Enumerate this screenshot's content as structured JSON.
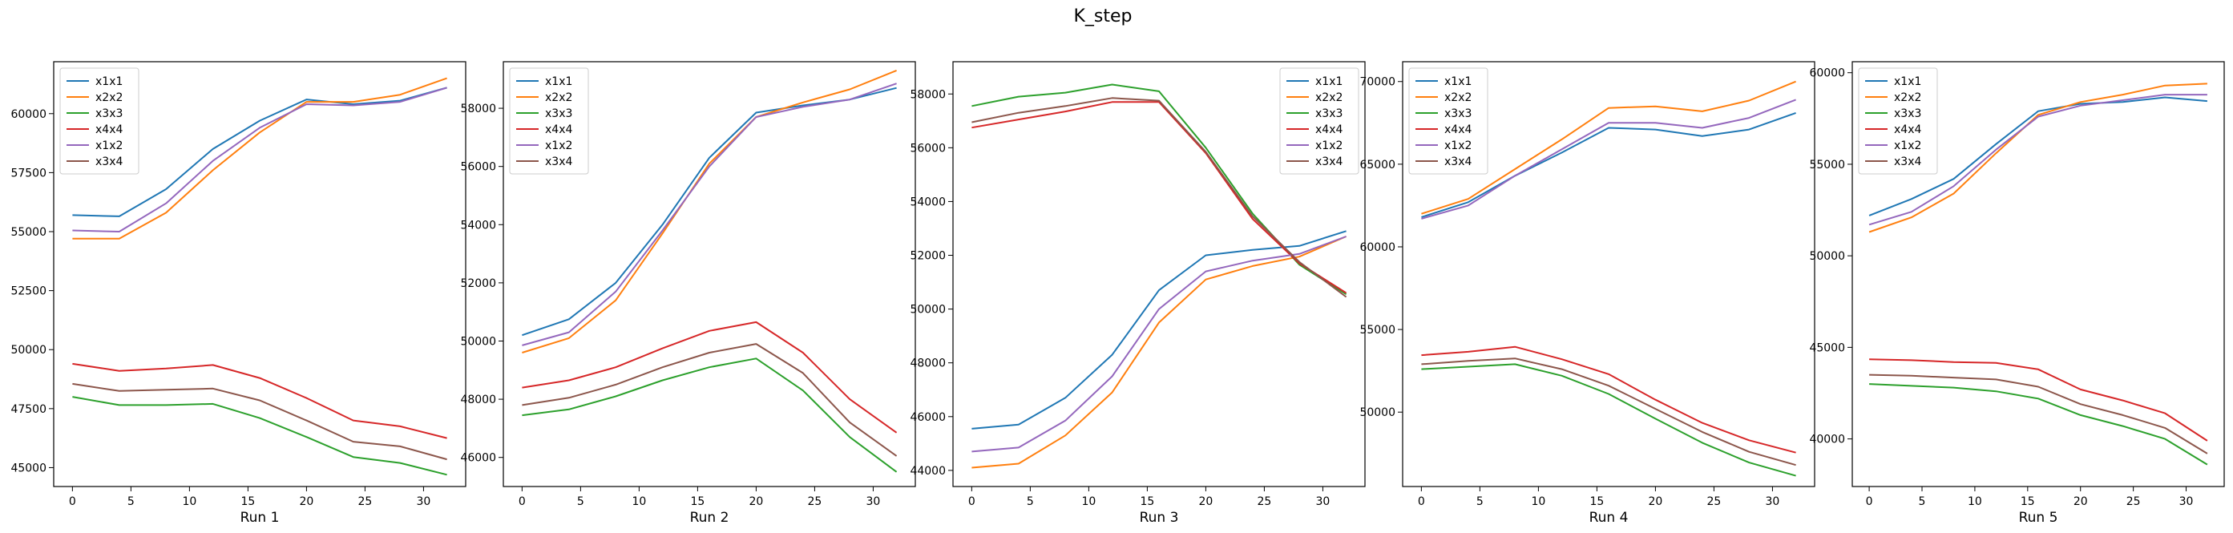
{
  "figure": {
    "title": "K_step"
  },
  "colors": {
    "x1x1": "#1f77b4",
    "x2x2": "#ff7f0e",
    "x3x3": "#2ca02c",
    "x4x4": "#d62728",
    "x1x2": "#9467bd",
    "x3x4": "#8c564b"
  },
  "chart_data": [
    {
      "type": "line",
      "xlabel": "Run 1",
      "legend": "top-left",
      "x": [
        0,
        4,
        8,
        12,
        16,
        20,
        24,
        28,
        32
      ],
      "xticks": [
        0,
        5,
        10,
        15,
        20,
        25,
        30
      ],
      "xlim": [
        -1.6,
        33.6
      ],
      "yticks": [
        45000,
        47500,
        50000,
        52500,
        55000,
        57500,
        60000
      ],
      "ylim": [
        44200,
        62200
      ],
      "series": [
        {
          "name": "x1x1",
          "values": [
            55700,
            55650,
            56800,
            58500,
            59700,
            60600,
            60400,
            60550,
            61100
          ]
        },
        {
          "name": "x2x2",
          "values": [
            54700,
            54700,
            55800,
            57600,
            59200,
            60500,
            60500,
            60800,
            61500
          ]
        },
        {
          "name": "x3x3",
          "values": [
            48000,
            47650,
            47650,
            47700,
            47100,
            46300,
            45450,
            45200,
            44700
          ]
        },
        {
          "name": "x4x4",
          "values": [
            49400,
            49100,
            49200,
            49350,
            48800,
            47950,
            47000,
            46750,
            46250
          ]
        },
        {
          "name": "x1x2",
          "values": [
            55050,
            55000,
            56200,
            58000,
            59400,
            60400,
            60350,
            60500,
            61100
          ]
        },
        {
          "name": "x3x4",
          "values": [
            48550,
            48250,
            48300,
            48350,
            47850,
            47000,
            46100,
            45900,
            45350
          ]
        }
      ]
    },
    {
      "type": "line",
      "xlabel": "Run 2",
      "legend": "top-left",
      "x": [
        0,
        4,
        8,
        12,
        16,
        20,
        24,
        28,
        32
      ],
      "xticks": [
        0,
        5,
        10,
        15,
        20,
        25,
        30
      ],
      "xlim": [
        -1.6,
        33.6
      ],
      "yticks": [
        46000,
        48000,
        50000,
        52000,
        54000,
        56000,
        58000
      ],
      "ylim": [
        45000,
        59600
      ],
      "series": [
        {
          "name": "x1x1",
          "values": [
            50200,
            50750,
            52000,
            54000,
            56300,
            57850,
            58100,
            58300,
            58700
          ]
        },
        {
          "name": "x2x2",
          "values": [
            49600,
            50100,
            51400,
            53700,
            56100,
            57700,
            58200,
            58650,
            59300
          ]
        },
        {
          "name": "x3x3",
          "values": [
            47450,
            47650,
            48100,
            48650,
            49100,
            49400,
            48300,
            46700,
            45500
          ]
        },
        {
          "name": "x4x4",
          "values": [
            48400,
            48650,
            49100,
            49750,
            50350,
            50650,
            49600,
            48000,
            46850
          ]
        },
        {
          "name": "x1x2",
          "values": [
            49850,
            50300,
            51700,
            53800,
            56000,
            57700,
            58050,
            58300,
            58850
          ]
        },
        {
          "name": "x3x4",
          "values": [
            47800,
            48050,
            48500,
            49100,
            49600,
            49900,
            48900,
            47200,
            46050
          ]
        }
      ]
    },
    {
      "type": "line",
      "xlabel": "Run 3",
      "legend": "top-right",
      "x": [
        0,
        4,
        8,
        12,
        16,
        20,
        24,
        28,
        32
      ],
      "xticks": [
        0,
        5,
        10,
        15,
        20,
        25,
        30
      ],
      "xlim": [
        -1.6,
        33.6
      ],
      "yticks": [
        44000,
        46000,
        48000,
        50000,
        52000,
        54000,
        56000,
        58000
      ],
      "ylim": [
        43400,
        59200
      ],
      "series": [
        {
          "name": "x1x1",
          "values": [
            45550,
            45700,
            46700,
            48300,
            50700,
            52000,
            52200,
            52350,
            52900
          ]
        },
        {
          "name": "x2x2",
          "values": [
            44100,
            44250,
            45300,
            46900,
            49500,
            51100,
            51600,
            51950,
            52700
          ]
        },
        {
          "name": "x3x3",
          "values": [
            57550,
            57900,
            58050,
            58350,
            58100,
            56000,
            53550,
            51650,
            50550
          ]
        },
        {
          "name": "x4x4",
          "values": [
            56750,
            57050,
            57350,
            57700,
            57700,
            55800,
            53350,
            51700,
            50600
          ]
        },
        {
          "name": "x1x2",
          "values": [
            44700,
            44850,
            45850,
            47500,
            50000,
            51400,
            51800,
            52050,
            52700
          ]
        },
        {
          "name": "x3x4",
          "values": [
            56950,
            57300,
            57550,
            57850,
            57750,
            55850,
            53450,
            51750,
            50450
          ]
        }
      ]
    },
    {
      "type": "line",
      "xlabel": "Run 4",
      "legend": "top-left",
      "x": [
        0,
        4,
        8,
        12,
        16,
        20,
        24,
        28,
        32
      ],
      "xticks": [
        0,
        5,
        10,
        15,
        20,
        25,
        30
      ],
      "xlim": [
        -1.6,
        33.6
      ],
      "yticks": [
        50000,
        55000,
        60000,
        65000,
        70000
      ],
      "ylim": [
        45500,
        71200
      ],
      "series": [
        {
          "name": "x1x1",
          "values": [
            61800,
            62700,
            64300,
            65700,
            67200,
            67100,
            66700,
            67100,
            68100
          ]
        },
        {
          "name": "x2x2",
          "values": [
            62000,
            62900,
            64700,
            66500,
            68400,
            68500,
            68200,
            68850,
            70000
          ]
        },
        {
          "name": "x3x3",
          "values": [
            52600,
            52750,
            52900,
            52200,
            51100,
            49600,
            48150,
            46950,
            46150
          ]
        },
        {
          "name": "x4x4",
          "values": [
            53450,
            53650,
            53950,
            53200,
            52300,
            50750,
            49350,
            48300,
            47550
          ]
        },
        {
          "name": "x1x2",
          "values": [
            61700,
            62500,
            64300,
            65900,
            67500,
            67500,
            67200,
            67800,
            68900
          ]
        },
        {
          "name": "x3x4",
          "values": [
            52900,
            53100,
            53250,
            52600,
            51600,
            50200,
            48800,
            47600,
            46800
          ]
        }
      ]
    },
    {
      "type": "line",
      "xlabel": "Run 5",
      "legend": "top-left",
      "x": [
        0,
        4,
        8,
        12,
        16,
        20,
        24,
        28,
        32
      ],
      "xticks": [
        0,
        5,
        10,
        15,
        20,
        25,
        30
      ],
      "xlim": [
        -1.6,
        33.6
      ],
      "yticks": [
        40000,
        45000,
        50000,
        55000,
        60000
      ],
      "ylim": [
        37400,
        60600
      ],
      "series": [
        {
          "name": "x1x1",
          "values": [
            52200,
            53100,
            54200,
            56100,
            57900,
            58300,
            58400,
            58650,
            58450
          ]
        },
        {
          "name": "x2x2",
          "values": [
            51300,
            52100,
            53400,
            55600,
            57700,
            58400,
            58800,
            59300,
            59400
          ]
        },
        {
          "name": "x3x3",
          "values": [
            43000,
            42900,
            42800,
            42600,
            42200,
            41300,
            40700,
            40000,
            38600
          ]
        },
        {
          "name": "x4x4",
          "values": [
            44350,
            44300,
            44200,
            44150,
            43800,
            42700,
            42100,
            41400,
            39900
          ]
        },
        {
          "name": "x1x2",
          "values": [
            51700,
            52400,
            53800,
            55800,
            57600,
            58200,
            58500,
            58800,
            58800
          ]
        },
        {
          "name": "x3x4",
          "values": [
            43500,
            43450,
            43350,
            43250,
            42850,
            41900,
            41300,
            40600,
            39200
          ]
        }
      ]
    }
  ]
}
